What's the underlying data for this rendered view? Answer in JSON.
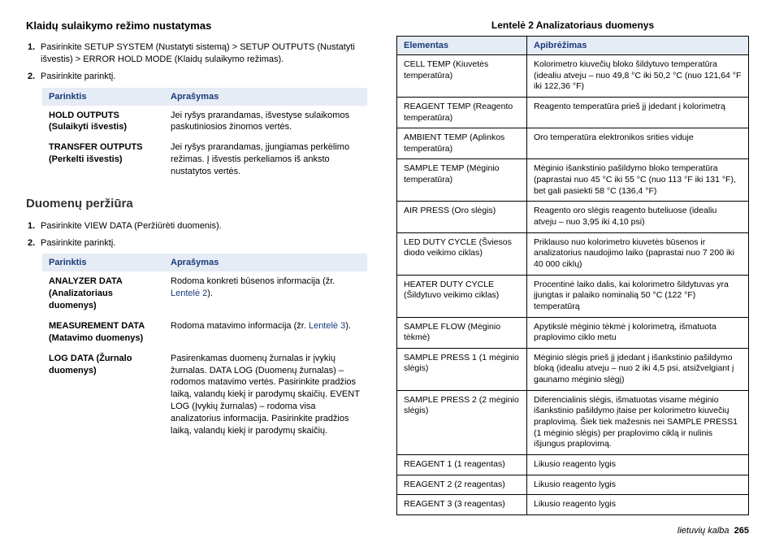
{
  "left": {
    "section1_title": "Klaidų sulaikymo režimo nustatymas",
    "step1_num": "1.",
    "step1_txt": "Pasirinkite SETUP SYSTEM (Nustatyti sistemą) > SETUP OUTPUTS (Nustatyti išvestis) > ERROR HOLD MODE (Klaidų sulaikymo režimas).",
    "step2_num": "2.",
    "step2_txt": "Pasirinkite parinktį.",
    "tbl1": {
      "h1": "Parinktis",
      "h2": "Aprašymas",
      "rows": [
        {
          "opt": "HOLD OUTPUTS (Sulaikyti išvestis)",
          "desc": "Jei ryšys prarandamas, išvestyse sulaikomos paskutiniosios žinomos vertės."
        },
        {
          "opt": "TRANSFER OUTPUTS (Perkelti išvestis)",
          "desc": "Jei ryšys prarandamas, įjungiamas perkėlimo režimas. Į išvestis perkeliamos iš anksto nustatytos vertės."
        }
      ]
    },
    "section2_title": "Duomenų peržiūra",
    "step3_num": "1.",
    "step3_txt": "Pasirinkite VIEW DATA (Peržiūrėti duomenis).",
    "step4_num": "2.",
    "step4_txt": "Pasirinkite parinktį.",
    "tbl2": {
      "h1": "Parinktis",
      "h2": "Aprašymas",
      "rows": [
        {
          "opt": "ANALYZER DATA (Analizatoriaus duomenys)",
          "desc_a": "Rodoma konkreti būsenos informacija (žr. ",
          "link": "Lentelė 2",
          "desc_b": ")."
        },
        {
          "opt": "MEASUREMENT DATA (Matavimo duomenys)",
          "desc_a": "Rodoma matavimo informacija (žr. ",
          "link": "Lentelė 3",
          "desc_b": ")."
        },
        {
          "opt": "LOG DATA (Žurnalo duomenys)",
          "desc_a": "Pasirenkamas duomenų žurnalas ir įvykių žurnalas. DATA LOG (Duomenų žurnalas) – rodomos matavimo vertės. Pasirinkite pradžios laiką, valandų kiekį ir parodymų skaičių. EVENT LOG (Įvykių žurnalas) – rodoma visa analizatorius informacija. Pasirinkite pradžios laiką, valandų kiekį ir parodymų skaičių.",
          "link": "",
          "desc_b": ""
        }
      ]
    }
  },
  "right": {
    "title": "Lentelė 2  Analizatoriaus duomenys",
    "h1": "Elementas",
    "h2": "Apibrėžimas",
    "rows": [
      {
        "el": "CELL TEMP (Kiuvetės temperatūra)",
        "def": "Kolorimetro kiuvečių bloko šildytuvo temperatūra (idealiu atveju – nuo 49,8 °C iki 50,2 °C (nuo 121,64 °F iki 122,36 °F)"
      },
      {
        "el": "REAGENT TEMP (Reagento temperatūra)",
        "def": "Reagento temperatūra prieš jį įdedant į kolorimetrą"
      },
      {
        "el": "AMBIENT TEMP (Aplinkos temperatūra)",
        "def": "Oro temperatūra elektronikos srities viduje"
      },
      {
        "el": "SAMPLE TEMP (Mėginio temperatūra)",
        "def": "Mėginio išankstinio pašildymo bloko temperatūra (paprastai nuo 45 °C iki 55 °C (nuo 113 °F iki 131 °F), bet gali pasiekti 58 °C (136,4 °F)"
      },
      {
        "el": "AIR PRESS (Oro slėgis)",
        "def": "Reagento oro slėgis reagento buteliuose (idealiu atveju – nuo 3,95 iki 4,10 psi)"
      },
      {
        "el": "LED DUTY CYCLE (Šviesos diodo veikimo ciklas)",
        "def": "Priklauso nuo kolorimetro kiuvetės būsenos ir analizatorius naudojimo laiko (paprastai nuo 7 200 iki 40 000 ciklų)"
      },
      {
        "el": "HEATER DUTY CYCLE (Šildytuvo veikimo ciklas)",
        "def": "Procentinė laiko dalis, kai kolorimetro šildytuvas yra įjungtas ir palaiko nominalią 50 °C (122 °F) temperatūrą"
      },
      {
        "el": "SAMPLE FLOW (Mėginio tėkmė)",
        "def": "Apytikslė mėginio tėkmė į kolorimetrą, išmatuota praplovimo ciklo metu"
      },
      {
        "el": "SAMPLE PRESS 1 (1 mėginio slėgis)",
        "def": "Mėginio slėgis prieš jį įdedant į išankstinio pašildymo bloką (idealiu atveju – nuo 2 iki 4,5 psi, atsižvelgiant į gaunamo mėginio slėgį)"
      },
      {
        "el": "SAMPLE PRESS 2 (2 mėginio slėgis)",
        "def": "Diferencialinis slėgis, išmatuotas visame mėginio išankstinio pašildymo įtaise per kolorimetro kiuvečių praplovimą. Šiek tiek mažesnis nei SAMPLE PRESS1 (1 mėginio slėgis) per praplovimo ciklą ir nulinis išjungus praplovimą."
      },
      {
        "el": "REAGENT 1 (1 reagentas)",
        "def": "Likusio reagento lygis"
      },
      {
        "el": "REAGENT 2 (2 reagentas)",
        "def": "Likusio reagento lygis"
      },
      {
        "el": "REAGENT 3 (3 reagentas)",
        "def": "Likusio reagento lygis"
      }
    ]
  },
  "footer": {
    "lang": "lietuvių kalba",
    "page": "265"
  }
}
